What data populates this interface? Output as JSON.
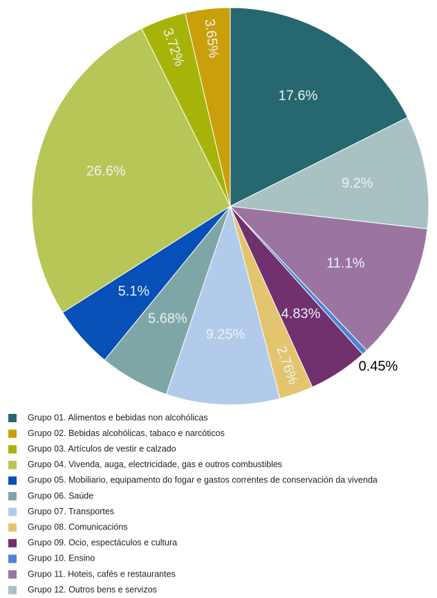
{
  "chart_data": {
    "type": "pie",
    "categories": [
      "Grupo 01. Alimentos e bebidas non alcohólicas",
      "Grupo 02. Bebidas alcohólicas, tabaco e narcóticos",
      "Grupo 03. Artículos de vestir e calzado",
      "Grupo 04. Vivenda, auga, electricidade, gas e outros combustibles",
      "Grupo 05. Mobiliario, equipamento do fogar e gastos correntes de conservación da vivenda",
      "Grupo 06. Saúde",
      "Grupo 07. Transportes",
      "Grupo 08. Comunicacións",
      "Grupo 09. Ocio, espectáculos e cultura",
      "Grupo 10. Ensino",
      "Grupo 11. Hoteis, cafés e restaurantes",
      "Grupo 12. Outros bens e servizos"
    ],
    "values": [
      17.6,
      3.65,
      3.72,
      26.6,
      5.1,
      5.68,
      9.25,
      2.76,
      4.83,
      0.45,
      11.1,
      9.2
    ],
    "value_labels": [
      "17.6%",
      "3.65%",
      "3.72%",
      "26.6%",
      "5.1%",
      "5.68%",
      "9.25%",
      "2.76%",
      "4.83%",
      "0.45%",
      "11.1%",
      "9.2%"
    ],
    "colors": [
      "#27676f",
      "#c9a00c",
      "#a6b40a",
      "#b8c657",
      "#0650b8",
      "#7fa6a6",
      "#b3cbea",
      "#e2c56e",
      "#71306e",
      "#4a86d6",
      "#9b74a0",
      "#a8c2c4"
    ],
    "legend": "bottom"
  }
}
